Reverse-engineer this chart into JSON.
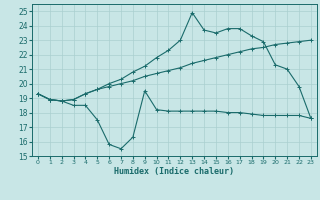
{
  "xlabel": "Humidex (Indice chaleur)",
  "xlim": [
    -0.5,
    23.5
  ],
  "ylim": [
    15,
    25.5
  ],
  "yticks": [
    15,
    16,
    17,
    18,
    19,
    20,
    21,
    22,
    23,
    24,
    25
  ],
  "xticks": [
    0,
    1,
    2,
    3,
    4,
    5,
    6,
    7,
    8,
    9,
    10,
    11,
    12,
    13,
    14,
    15,
    16,
    17,
    18,
    19,
    20,
    21,
    22,
    23
  ],
  "bg_color": "#c8e6e6",
  "grid_color": "#aad0d0",
  "line_color": "#1a6b6b",
  "line1_x": [
    0,
    1,
    2,
    3,
    4,
    5,
    6,
    7,
    8,
    9,
    10,
    11,
    12,
    13,
    14,
    15,
    16,
    17,
    18,
    19,
    20,
    21,
    22,
    23
  ],
  "line1_y": [
    19.3,
    18.9,
    18.8,
    18.5,
    18.5,
    17.5,
    15.8,
    15.5,
    16.3,
    19.5,
    18.2,
    18.1,
    18.1,
    18.1,
    18.1,
    18.1,
    18.0,
    18.0,
    17.9,
    17.8,
    17.8,
    17.8,
    17.8,
    17.6
  ],
  "line2_x": [
    0,
    1,
    2,
    3,
    4,
    5,
    6,
    7,
    8,
    9,
    10,
    11,
    12,
    13,
    14,
    15,
    16,
    17,
    18,
    19,
    20,
    21,
    22,
    23
  ],
  "line2_y": [
    19.3,
    18.9,
    18.8,
    18.9,
    19.3,
    19.6,
    19.8,
    20.0,
    20.2,
    20.5,
    20.7,
    20.9,
    21.1,
    21.4,
    21.6,
    21.8,
    22.0,
    22.2,
    22.4,
    22.5,
    22.7,
    22.8,
    22.9,
    23.0
  ],
  "line3_x": [
    0,
    1,
    2,
    3,
    4,
    5,
    6,
    7,
    8,
    9,
    10,
    11,
    12,
    13,
    14,
    15,
    16,
    17,
    18,
    19,
    20,
    21,
    22,
    23
  ],
  "line3_y": [
    19.3,
    18.9,
    18.8,
    18.9,
    19.3,
    19.6,
    20.0,
    20.3,
    20.8,
    21.2,
    21.8,
    22.3,
    23.0,
    24.9,
    23.7,
    23.5,
    23.8,
    23.8,
    23.3,
    22.9,
    21.3,
    21.0,
    19.8,
    17.6
  ]
}
